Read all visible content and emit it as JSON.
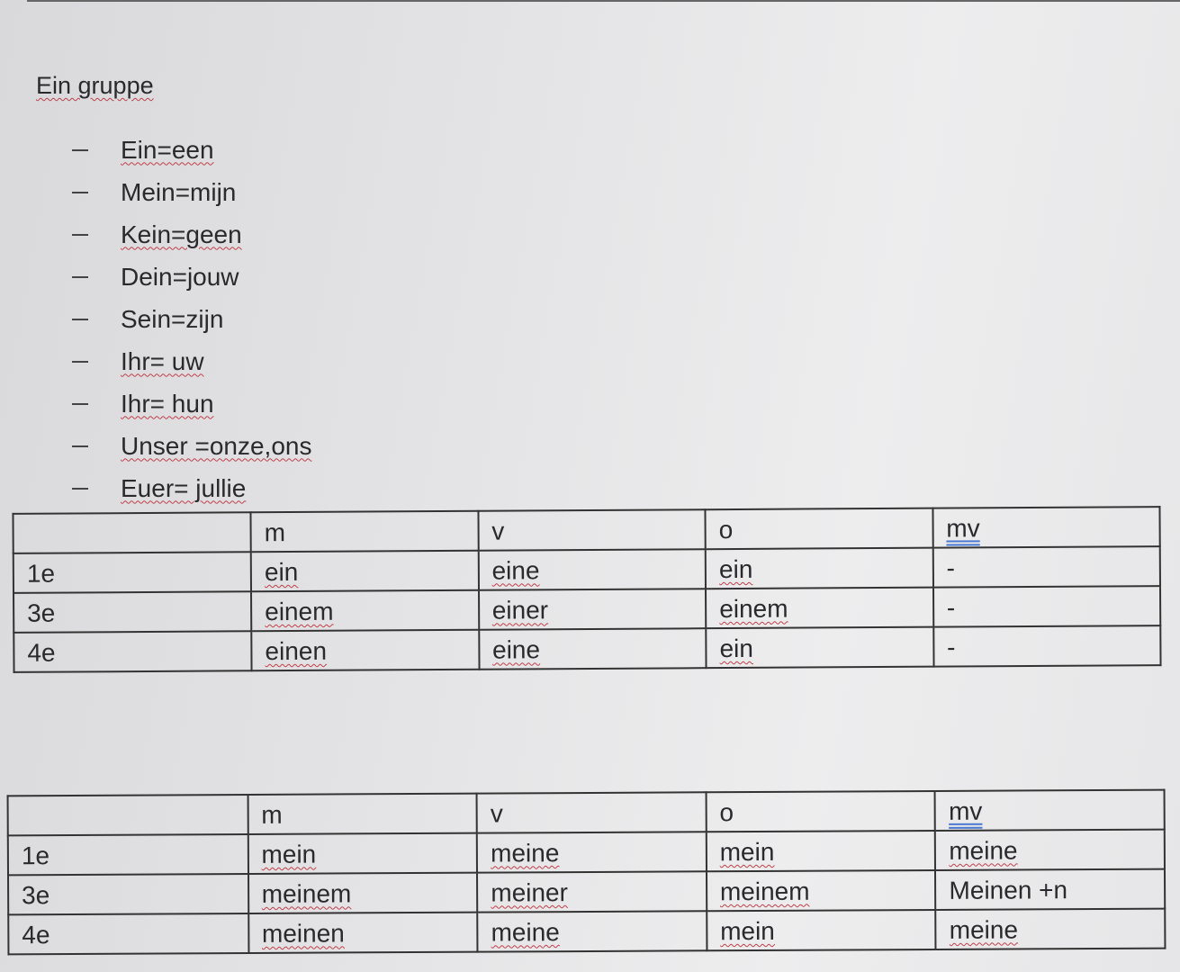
{
  "title": "Ein gruppe",
  "items": [
    "Ein=een",
    "Mein=mijn",
    "Kein=geen",
    "Dein=jouw",
    "Sein=zijn",
    "Ihr= uw",
    "Ihr= hun",
    "Unser =onze,ons",
    "Euer= jullie"
  ],
  "table1": {
    "headers": [
      "",
      "m",
      "v",
      "o",
      "mv"
    ],
    "rows": [
      [
        "1e",
        "ein",
        "eine",
        "ein",
        "-"
      ],
      [
        "3e",
        "einem",
        "einer",
        "einem",
        "-"
      ],
      [
        "4e",
        "einen",
        "eine",
        "ein",
        "-"
      ]
    ]
  },
  "table2": {
    "headers": [
      "",
      "m",
      "v",
      "o",
      "mv"
    ],
    "rows": [
      [
        "1e",
        "mein",
        "meine",
        "mein",
        "meine"
      ],
      [
        "3e",
        "meinem",
        "meiner",
        "meinem",
        "Meinen +n"
      ],
      [
        "4e",
        "meinen",
        "meine",
        "mein",
        "meine"
      ]
    ]
  }
}
